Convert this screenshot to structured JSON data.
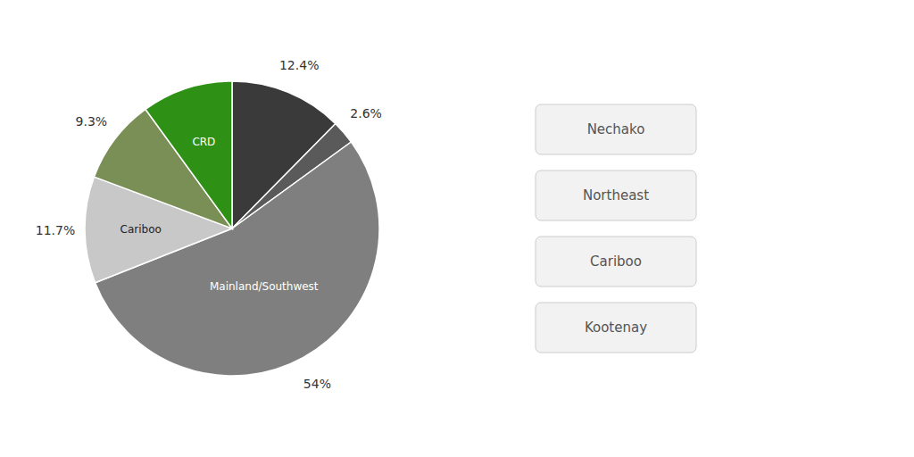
{
  "chart_data": {
    "type": "pie",
    "categories": [
      null,
      null,
      "Mainland/Southwest",
      "Cariboo",
      null,
      "CRD"
    ],
    "values": [
      12.4,
      2.6,
      54.0,
      11.7,
      9.3,
      10.0
    ],
    "value_labels": [
      "12.4%",
      "2.6%",
      "54%",
      "11.7%",
      "9.3%",
      null
    ],
    "data_labels": true,
    "colors": [
      "#3a3a3a",
      "#5a5a5a",
      "#7f7f7f",
      "#c8c8c8",
      "#7a8f55",
      "#2e9116"
    ],
    "annotations": [
      "Nechako",
      "Northeast",
      "Cariboo",
      "Kootenay"
    ]
  }
}
